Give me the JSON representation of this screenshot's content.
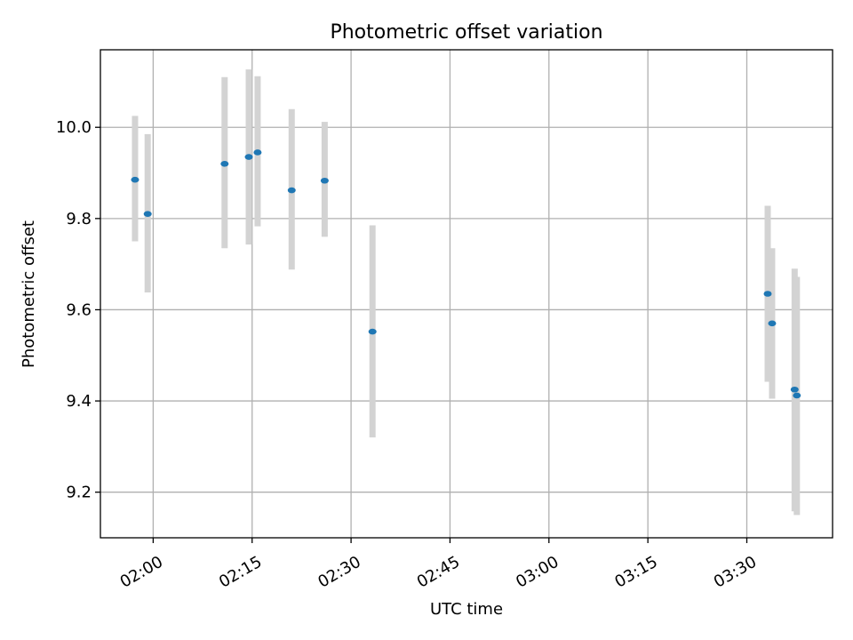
{
  "chart_data": {
    "type": "scatter",
    "title": "Photometric offset variation",
    "xlabel": "UTC time",
    "ylabel": "Photometric offset",
    "x_axis_type": "time",
    "xlim": [
      "01:52",
      "03:43"
    ],
    "ylim": [
      9.1,
      10.17
    ],
    "grid": true,
    "x_ticks": [
      "02:00",
      "02:15",
      "02:30",
      "02:45",
      "03:00",
      "03:15",
      "03:30"
    ],
    "y_ticks": [
      9.2,
      9.4,
      9.6,
      9.8,
      10.0
    ],
    "y_tick_labels": [
      "9.2",
      "9.4",
      "9.6",
      "9.8",
      "10.0"
    ],
    "colors": {
      "points": "#1f77b4",
      "error_bars": "#d3d3d3",
      "grid": "#b0b0b0"
    },
    "points": [
      {
        "x": "01:57:15",
        "y": 9.885,
        "y_low": 9.75,
        "y_high": 10.025
      },
      {
        "x": "01:59:10",
        "y": 9.81,
        "y_low": 9.638,
        "y_high": 9.985
      },
      {
        "x": "02:10:50",
        "y": 9.92,
        "y_low": 9.735,
        "y_high": 10.11
      },
      {
        "x": "02:14:30",
        "y": 9.935,
        "y_low": 9.743,
        "y_high": 10.127
      },
      {
        "x": "02:15:50",
        "y": 9.945,
        "y_low": 9.783,
        "y_high": 10.112
      },
      {
        "x": "02:21:00",
        "y": 9.862,
        "y_low": 9.688,
        "y_high": 10.04
      },
      {
        "x": "02:26:00",
        "y": 9.883,
        "y_low": 9.76,
        "y_high": 10.012
      },
      {
        "x": "02:33:15",
        "y": 9.552,
        "y_low": 9.32,
        "y_high": 9.785
      },
      {
        "x": "03:33:10",
        "y": 9.635,
        "y_low": 9.442,
        "y_high": 9.828
      },
      {
        "x": "03:33:50",
        "y": 9.57,
        "y_low": 9.405,
        "y_high": 9.735
      },
      {
        "x": "03:37:15",
        "y": 9.425,
        "y_low": 9.158,
        "y_high": 9.69
      },
      {
        "x": "03:37:35",
        "y": 9.412,
        "y_low": 9.15,
        "y_high": 9.672
      }
    ]
  }
}
